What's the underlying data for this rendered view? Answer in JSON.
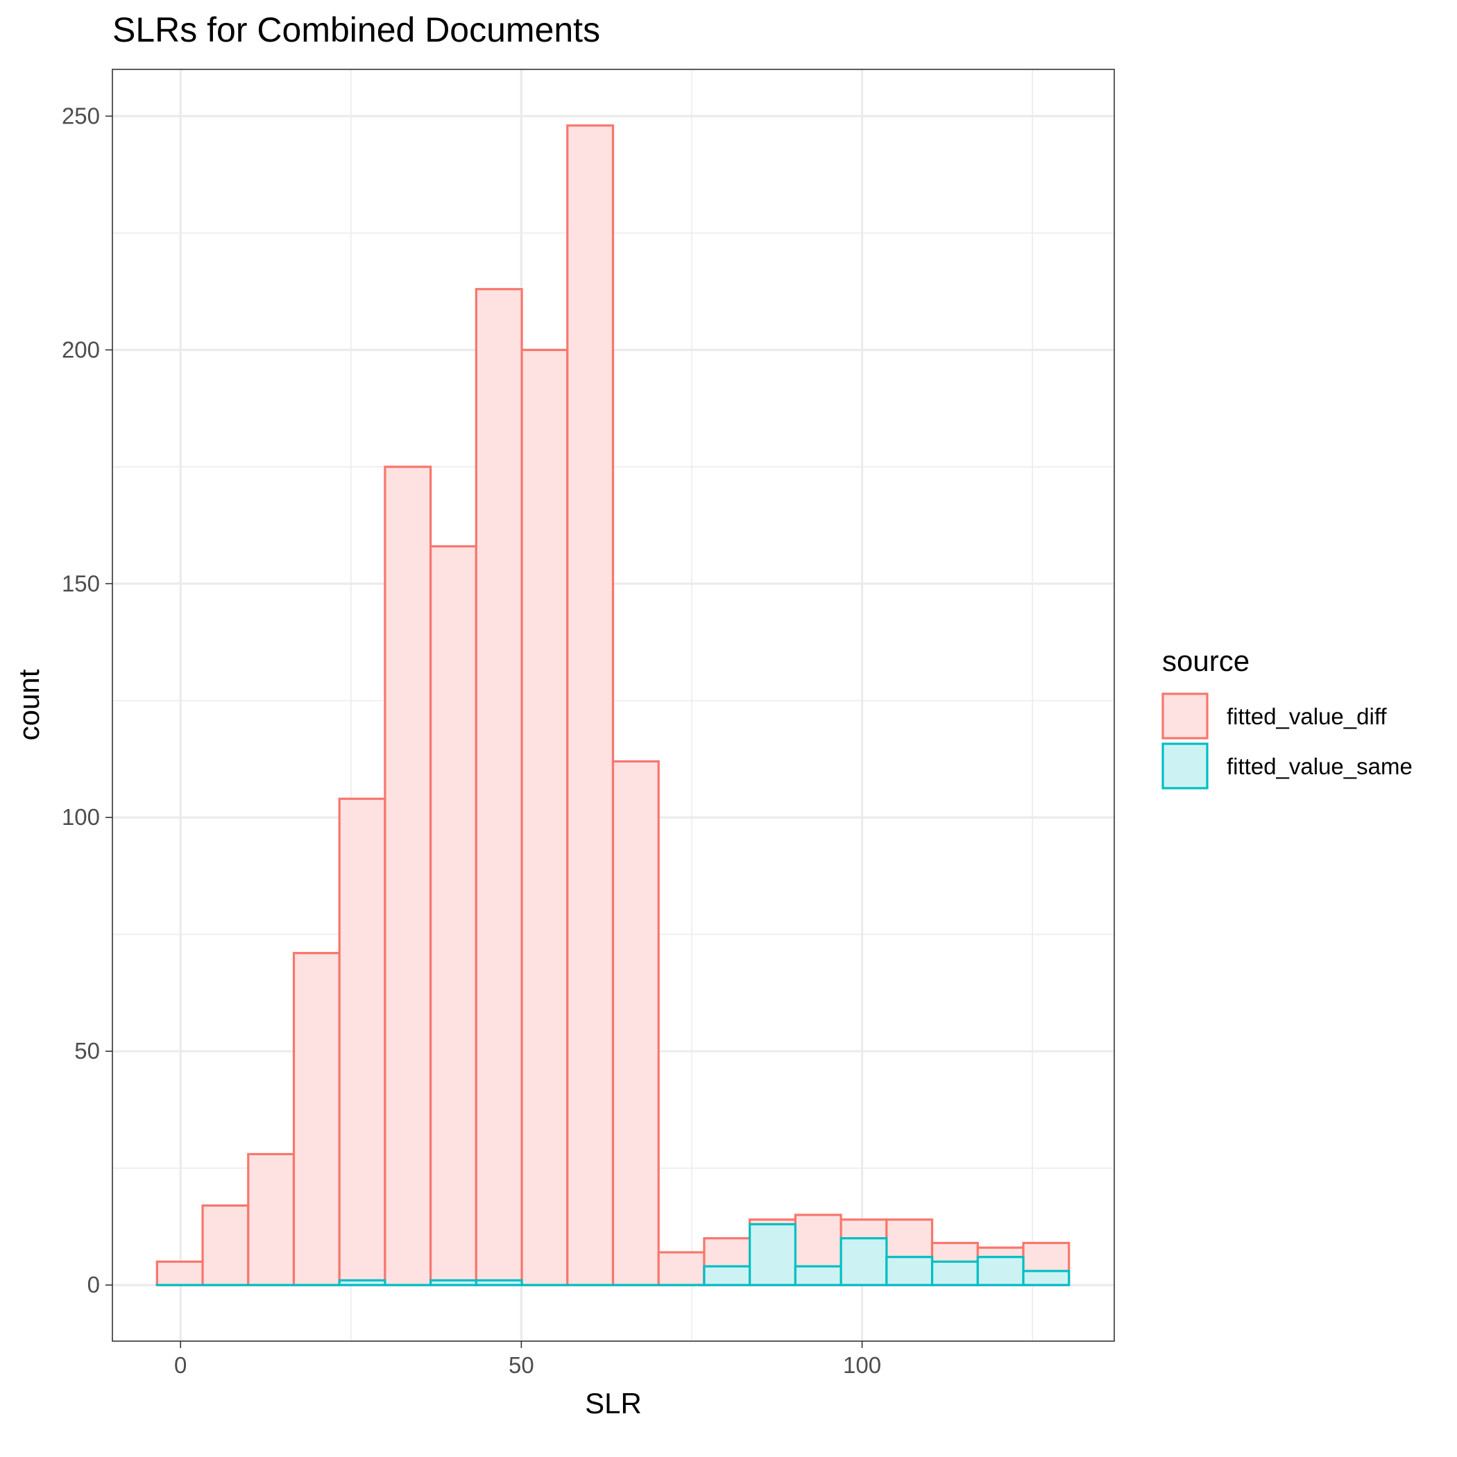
{
  "chart_data": {
    "type": "bar",
    "title": "SLRs for Combined Documents",
    "xlabel": "SLR",
    "ylabel": "count",
    "xlim": [
      -10,
      137
    ],
    "ylim": [
      -12,
      260
    ],
    "x_ticks": [
      0,
      50,
      100
    ],
    "x_tick_labels": [
      "0",
      "50",
      "100"
    ],
    "y_ticks": [
      0,
      50,
      100,
      150,
      200,
      250
    ],
    "y_tick_labels": [
      "0",
      "50",
      "100",
      "150",
      "200",
      "250"
    ],
    "grid": true,
    "legend": {
      "title": "source",
      "position": "right"
    },
    "bin_start": -3.45,
    "bin_width": 6.69,
    "series": [
      {
        "name": "fitted_value_diff",
        "outline": "#F8766D",
        "fill": "#FDE2E1",
        "values": [
          5,
          17,
          28,
          71,
          104,
          175,
          158,
          213,
          200,
          248,
          112,
          7,
          10,
          14,
          15,
          14,
          14,
          9,
          8,
          9
        ]
      },
      {
        "name": "fitted_value_same",
        "outline": "#00BFC4",
        "fill": "#CDF2F3",
        "values": [
          0,
          0,
          0,
          0,
          1,
          0,
          1,
          1,
          0,
          0,
          0,
          0,
          4,
          13,
          4,
          10,
          6,
          5,
          6,
          3
        ]
      }
    ]
  }
}
